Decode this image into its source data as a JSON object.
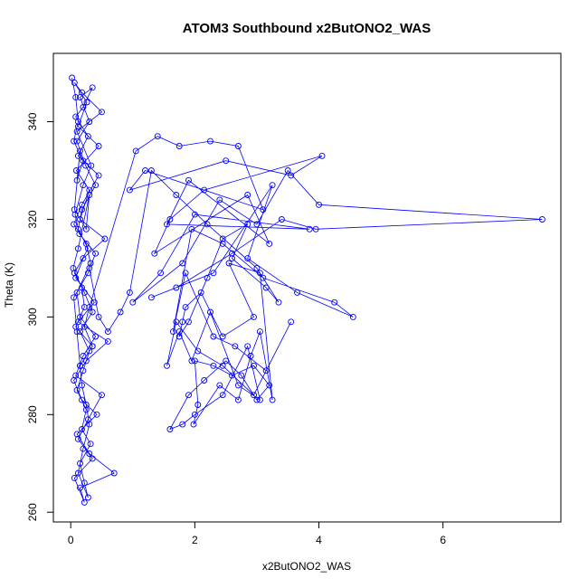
{
  "chart_data": {
    "type": "line",
    "title": "ATOM3 Southbound x2ButONO2_WAS",
    "xlabel": "x2ButONO2_WAS",
    "ylabel": "Theta (K)",
    "xlim": [
      -0.28,
      7.9
    ],
    "ylim": [
      258,
      354
    ],
    "x_ticks": [
      0,
      2,
      4,
      6
    ],
    "y_ticks": [
      260,
      280,
      300,
      320,
      340
    ],
    "grid": false,
    "legend": "none",
    "markers": "open-circle",
    "series_color": "#0000ff",
    "series": [
      {
        "x": [
          0.02,
          0.08,
          0.12,
          0.05,
          0.2,
          0.1,
          0.15,
          0.06,
          0.25,
          0.3,
          0.12,
          0.04,
          0.18,
          0.22,
          0.08,
          0.35,
          0.15,
          0.1,
          0.05,
          0.28,
          0.4,
          0.14,
          0.07,
          0.2,
          0.33,
          0.1,
          0.5,
          0.18,
          0.06,
          0.26,
          0.12,
          0.45,
          0.09,
          0.3,
          0.15,
          0.55,
          0.2,
          0.08,
          0.38,
          0.12,
          0.6,
          0.25,
          0.05,
          0.18,
          0.42,
          0.1,
          0.3,
          0.7,
          0.15,
          0.22,
          0.06,
          0.35,
          0.12,
          0.28,
          0.5,
          0.08,
          0.2,
          0.4,
          0.15,
          0.1,
          0.32,
          0.25,
          0.05,
          0.18,
          0.45,
          0.12,
          0.28,
          0.08,
          0.2,
          0.35,
          0.15,
          0.3,
          0.1,
          0.24,
          0.4,
          0.18,
          0.12,
          0.28,
          0.06,
          0.22,
          0.35,
          0.15,
          0.3,
          0.2,
          0.1,
          0.25,
          0.18,
          0.32,
          0.15,
          0.22,
          0.28,
          0.12,
          0.2,
          0.3,
          0.25,
          0.18,
          0.15,
          0.35,
          0.22,
          0.3,
          1.05,
          1.4,
          1.75,
          2.25,
          2.7,
          3.1,
          1.2,
          0.95,
          2.5,
          3.55,
          4.05,
          2.15,
          1.6,
          1.35,
          2.85,
          3.2,
          1.9,
          1.55,
          3.85,
          2.0,
          1.45,
          1.0,
          1.8,
          2.4,
          3.0,
          3.5,
          4.0,
          7.6,
          3.95,
          3.4,
          2.6,
          1.7,
          1.3,
          2.3,
          3.25,
          2.85,
          3.65,
          4.55,
          4.25,
          3.1,
          2.45,
          1.95,
          1.65,
          1.85,
          2.3,
          2.65,
          3.15,
          3.55,
          2.95,
          2.45,
          2.05,
          1.7,
          1.55,
          1.75,
          1.95,
          2.25,
          2.7,
          3.05,
          2.85,
          2.45,
          2.0,
          1.8,
          1.6,
          1.9,
          2.15,
          2.5,
          2.75,
          3.0,
          3.2,
          2.95,
          2.6,
          2.3,
          2.0,
          2.05,
          1.98,
          2.4,
          2.7,
          2.9,
          3.05,
          3.25,
          3.05,
          2.55,
          2.95,
          2.45,
          2.1,
          1.85,
          1.8,
          1.75,
          1.9,
          2.2,
          2.45,
          2.85,
          2.6,
          3.15,
          3.35,
          3.0,
          2.2,
          1.7,
          1.3,
          0.95,
          0.8,
          0.6,
          0.45,
          0.3
        ],
        "y": [
          349,
          345,
          340,
          336,
          332,
          328,
          334,
          322,
          318,
          325,
          314,
          310,
          306,
          302,
          298,
          294,
          290,
          297,
          304,
          309,
          313,
          317,
          321,
          327,
          331,
          338,
          342,
          346,
          348,
          344,
          339,
          335,
          330,
          326,
          320,
          316,
          312,
          308,
          303,
          299,
          295,
          291,
          287,
          283,
          280,
          276,
          272,
          268,
          265,
          262,
          267,
          271,
          275,
          279,
          284,
          288,
          292,
          296,
          300,
          305,
          311,
          315,
          319,
          323,
          329,
          333,
          337,
          341,
          343,
          347,
          345,
          340,
          336,
          331,
          327,
          322,
          318,
          314,
          309,
          305,
          301,
          297,
          293,
          289,
          285,
          281,
          277,
          274,
          270,
          266,
          263,
          268,
          273,
          278,
          282,
          286,
          290,
          294,
          298,
          302,
          334,
          337,
          335,
          336,
          335,
          322,
          330,
          326,
          332,
          329,
          333,
          326,
          320,
          313,
          325,
          315,
          328,
          319,
          318,
          321,
          309,
          303,
          311,
          324,
          319,
          330,
          323,
          320,
          318,
          320,
          313,
          306,
          304,
          309,
          327,
          312,
          305,
          300,
          303,
          308,
          315,
          318,
          297,
          309,
          296,
          294,
          289,
          299,
          284,
          290,
          293,
          299,
          290,
          297,
          291,
          301,
          286,
          283,
          294,
          284,
          280,
          278,
          277,
          284,
          287,
          291,
          288,
          283,
          286,
          290,
          288,
          290,
          291,
          282,
          278,
          286,
          283,
          292,
          297,
          283,
          309,
          311,
          300,
          296,
          305,
          302,
          299,
          296,
          299,
          308,
          316,
          319,
          312,
          306,
          303,
          310,
          319,
          325,
          330,
          305,
          301,
          297,
          300,
          310
        ]
      }
    ]
  }
}
